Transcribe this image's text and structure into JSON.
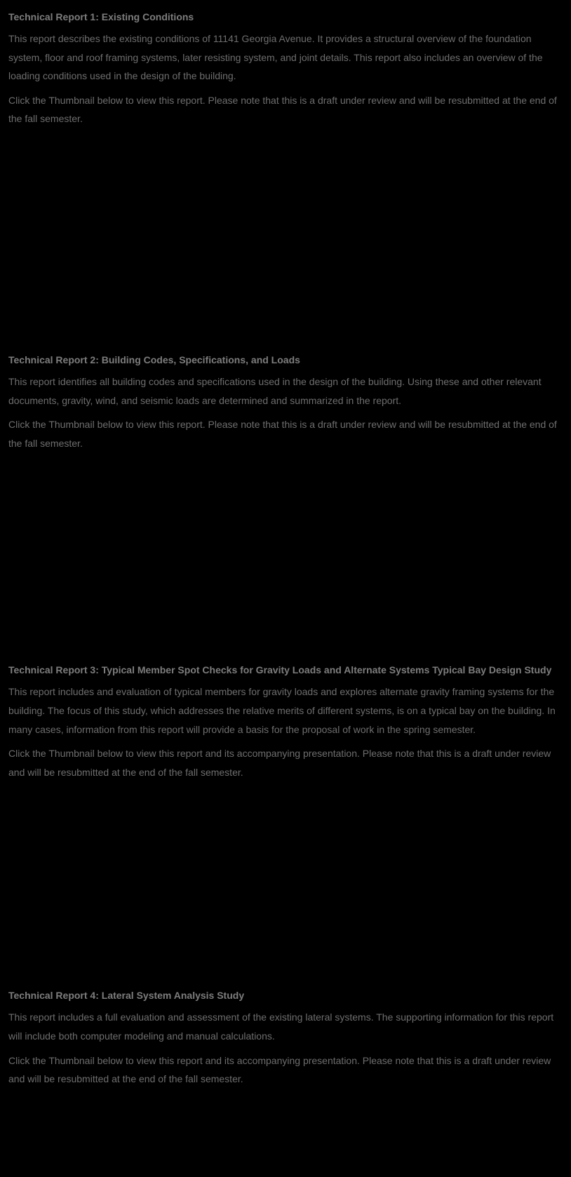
{
  "reports": [
    {
      "title": "Technical Report 1:  Existing Conditions",
      "description": "This report describes the existing conditions of 11141 Georgia Avenue.  It provides a structural overview of the foundation system, floor and roof framing systems, later resisting system, and joint details. This report also includes an overview of the loading conditions used in the design of the building.",
      "instruction": "Click the Thumbnail below to view this report.  Please note that this is a draft under review and will be resubmitted at the end of the fall semester."
    },
    {
      "title": "Technical Report 2:  Building Codes, Specifications, and Loads",
      "description": "This report identifies all building codes and specifications used in the design of the building.  Using these and other relevant documents, gravity, wind, and seismic loads are determined and summarized in the report.",
      "instruction": "Click the Thumbnail below to view this report.  Please note that this is a draft under review and will be resubmitted at the end of the fall semester."
    },
    {
      "title": "Technical Report 3:  Typical Member Spot Checks for Gravity Loads and Alternate Systems Typical Bay Design Study",
      "description": "This report includes and evaluation of typical members for gravity loads and explores alternate gravity framing systems for the building.  The focus of this study, which addresses the relative merits of different systems, is on a typical bay on the building.  In many cases, information from this report will provide a basis for the proposal of work in the spring semester.",
      "instruction": "Click the Thumbnail below to view this report and its accompanying presentation.  Please note that this is a draft under review and will be resubmitted at the end of the fall semester."
    },
    {
      "title": "Technical Report 4:  Lateral System Analysis Study",
      "description": "This report includes a full evaluation and assessment of the existing lateral systems.  The supporting information for this report will include both computer modeling and manual calculations.",
      "instruction": "Click the Thumbnail below to view this report and its accompanying presentation.  Please note that this is a draft under review and will be resubmitted at the end of the fall semester."
    }
  ],
  "colors": {
    "background": "#000000",
    "title_text": "#7d7d7d",
    "body_text": "#6e6e6e"
  },
  "typography": {
    "title_fontsize": 14,
    "title_weight": "bold",
    "body_fontsize": 14,
    "line_height": 1.9
  }
}
